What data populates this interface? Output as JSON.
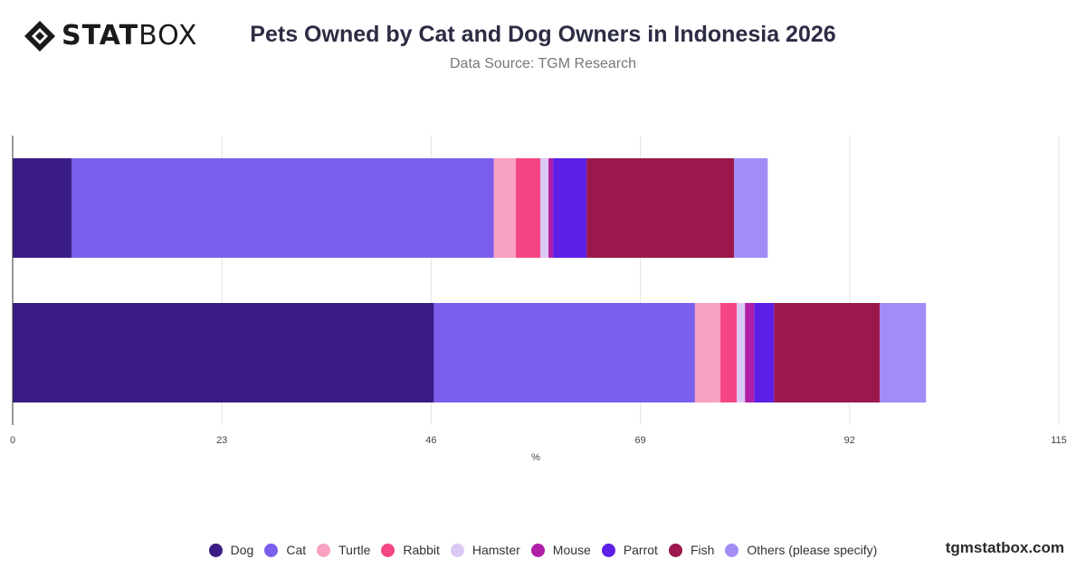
{
  "brand": {
    "logo_bold": "STAT",
    "logo_light": "BOX",
    "site": "tgmstatbox.com"
  },
  "header": {
    "title": "Pets Owned by Cat and Dog Owners in Indonesia 2026",
    "subtitle": "Data Source: TGM Research"
  },
  "chart_data": {
    "type": "bar",
    "orientation": "horizontal",
    "stacked": true,
    "categories": [
      "",
      ""
    ],
    "xlabel": "%",
    "xlim": [
      0,
      115
    ],
    "xticks": [
      0,
      23,
      46,
      69,
      92,
      115
    ],
    "grid": true,
    "legend_position": "bottom",
    "series": [
      {
        "name": "Dog",
        "color": "#3a1c86",
        "values": [
          6.5,
          46.3
        ]
      },
      {
        "name": "Cat",
        "color": "#7c5eed",
        "values": [
          46.4,
          28.7
        ]
      },
      {
        "name": "Turtle",
        "color": "#f9a1c2",
        "values": [
          2.4,
          2.8
        ]
      },
      {
        "name": "Rabbit",
        "color": "#f44684",
        "values": [
          2.7,
          1.8
        ]
      },
      {
        "name": "Hamster",
        "color": "#dcc8f4",
        "values": [
          0.9,
          0.9
        ]
      },
      {
        "name": "Mouse",
        "color": "#b11ea6",
        "values": [
          0.5,
          1.0
        ]
      },
      {
        "name": "Parrot",
        "color": "#5d1ee6",
        "values": [
          3.7,
          2.2
        ]
      },
      {
        "name": "Fish",
        "color": "#9b174c",
        "values": [
          16.2,
          11.6
        ]
      },
      {
        "name": "Others (please specify)",
        "color": "#a48cf7",
        "values": [
          3.7,
          5.1
        ]
      }
    ]
  }
}
